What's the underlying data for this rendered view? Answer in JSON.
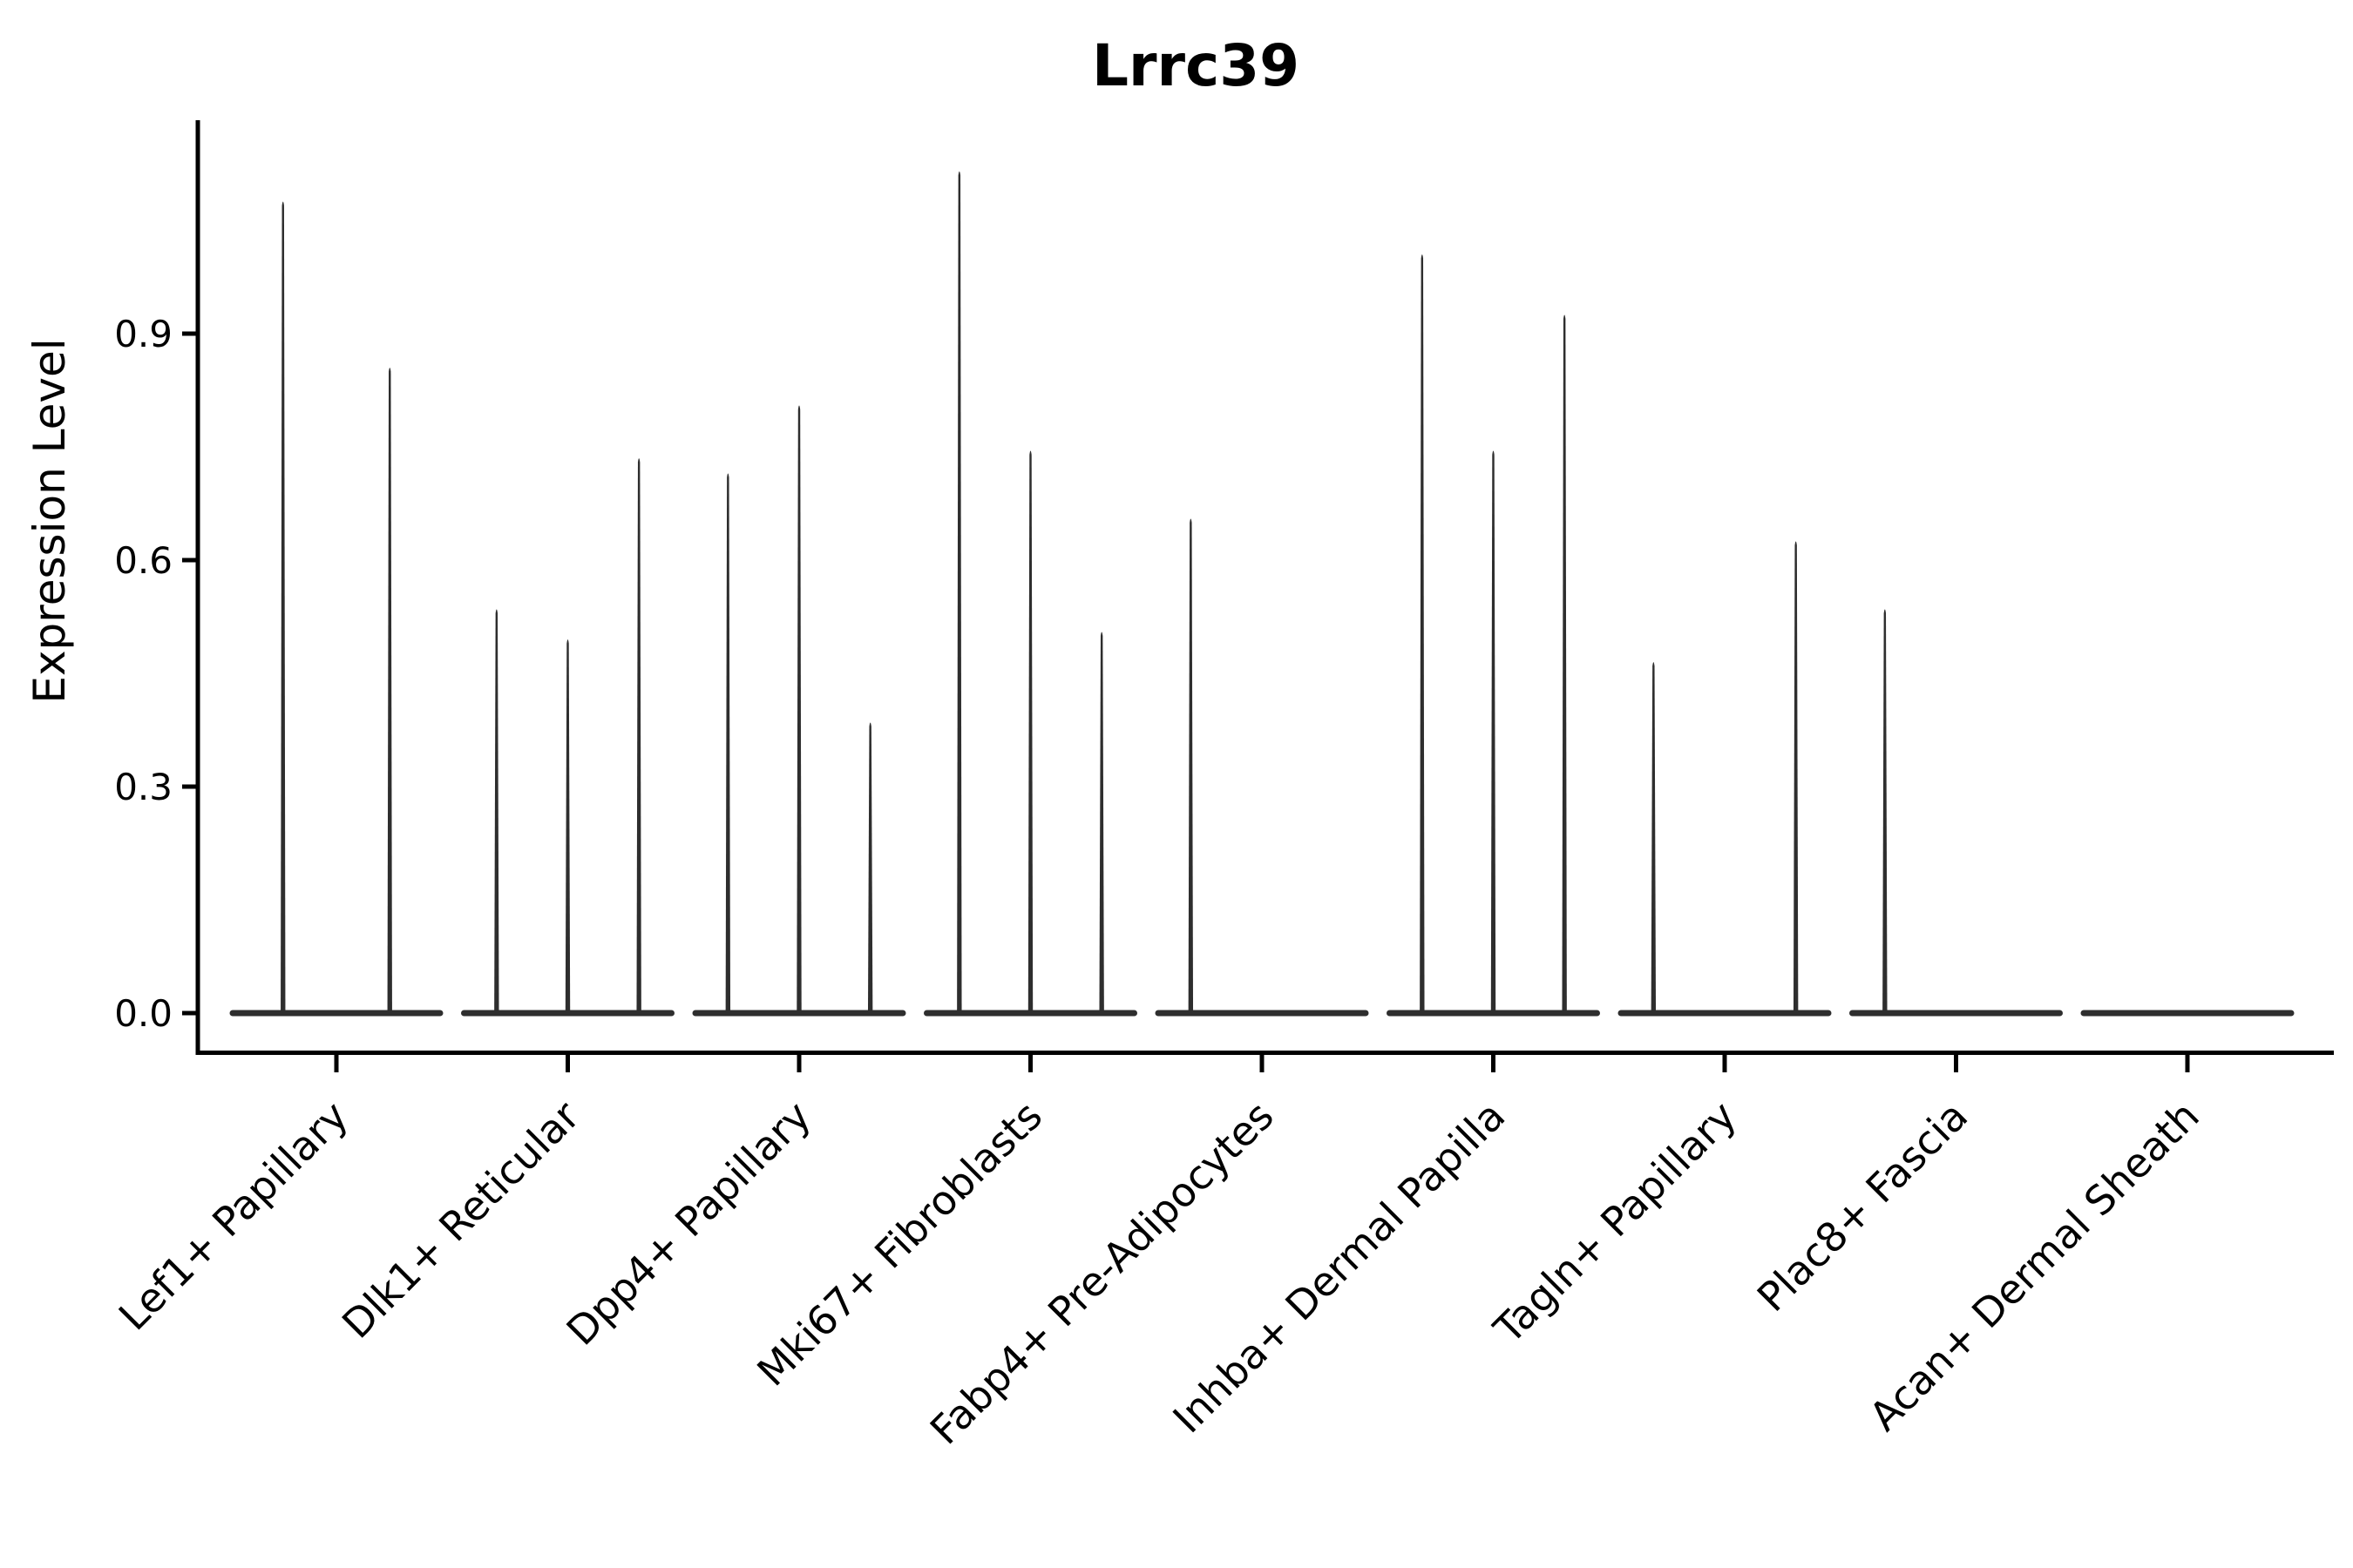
{
  "chart_data": {
    "type": "violin",
    "title": "Lrrc39",
    "xlabel": "",
    "ylabel": "Expression Level",
    "ylim": [
      0,
      1.18
    ],
    "yticks": [
      {
        "value": 0.0,
        "label": "0.0"
      },
      {
        "value": 0.3,
        "label": "0.3"
      },
      {
        "value": 0.6,
        "label": "0.6"
      },
      {
        "value": 0.9,
        "label": "0.9"
      }
    ],
    "grid": false,
    "legend": "none",
    "x_tick_angle_deg": 45,
    "categories": [
      "Lef1+ Papillary",
      "Dlk1+ Reticular",
      "Dpp4+ Papillary",
      "Mki67+ Fibroblasts",
      "Fabp4+ Pre-Adipocytes",
      "Inhba+ Dermal Papilla",
      "Tagln+ Papillary",
      "Plac8+ Fascia",
      "Acan+ Dermal Sheath"
    ],
    "groups": [
      {
        "category": "Lef1+ Papillary",
        "violin_maxima": [
          1.08,
          0.86
        ]
      },
      {
        "category": "Dlk1+ Reticular",
        "violin_maxima": [
          0.54,
          0.5,
          0.74
        ]
      },
      {
        "category": "Dpp4+ Papillary",
        "violin_maxima": [
          0.72,
          0.81,
          0.39
        ]
      },
      {
        "category": "Mki67+ Fibroblasts",
        "violin_maxima": [
          1.12,
          0.75,
          0.51
        ]
      },
      {
        "category": "Fabp4+ Pre-Adipocytes",
        "violin_maxima": [
          0.66,
          0,
          0
        ]
      },
      {
        "category": "Inhba+ Dermal Papilla",
        "violin_maxima": [
          1.01,
          0.75,
          0.93
        ]
      },
      {
        "category": "Tagln+ Papillary",
        "violin_maxima": [
          0.47,
          0,
          0.63
        ]
      },
      {
        "category": "Plac8+ Fascia",
        "violin_maxima": [
          0.54,
          0,
          0
        ]
      },
      {
        "category": "Acan+ Dermal Sheath",
        "violin_maxima": [
          0,
          0,
          0
        ]
      }
    ],
    "description": "Each category shows a violin (or dodged violins) whose density is concentrated at 0 (flat pancake) with a thin spike up to the listed maximum expression value; zero maxima mean a completely flat violin."
  },
  "colors": {
    "background": "#ffffff",
    "violin": "#2e2e2e",
    "axis": "#000000",
    "text": "#000000"
  }
}
